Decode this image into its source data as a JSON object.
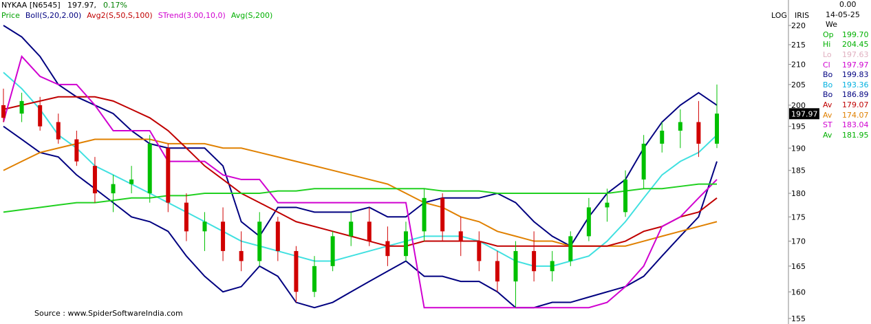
{
  "header": {
    "symbol": "NYKAA [N6545]",
    "price": "197.97,",
    "change": "0.17%"
  },
  "legend": [
    {
      "label": "Price",
      "color": "#00a000"
    },
    {
      "label": "Boll(S,20,2.00)",
      "color": "#000080"
    },
    {
      "label": "Avg2(S,50,S,100)",
      "color": "#c00000"
    },
    {
      "label": "STrend(3.00,10,0)",
      "color": "#d000d0"
    },
    {
      "label": "Avg(S,200)",
      "color": "#00b000"
    }
  ],
  "scale_labels": [
    "LOG",
    "IRIS"
  ],
  "source": "Source : www.SpiderSoftwareIndia.com",
  "info_panel": {
    "change": "0.00",
    "date": "14-05-25 We",
    "rows": [
      {
        "label": "Op",
        "value": "199.70",
        "color": "#00b000"
      },
      {
        "label": "Hi",
        "value": "204.45",
        "color": "#00b000"
      },
      {
        "label": "Lo",
        "value": "197.63",
        "color": "#e0b0c0"
      },
      {
        "label": "Cl",
        "value": "197.97",
        "color": "#d000d0"
      },
      {
        "label": "Bo",
        "value": "199.83",
        "color": "#000080"
      },
      {
        "label": "Bo",
        "value": "193.36",
        "color": "#00b0e0"
      },
      {
        "label": "Bo",
        "value": "186.89",
        "color": "#000080"
      },
      {
        "label": "Av",
        "value": "179.07",
        "color": "#c00000"
      },
      {
        "label": "Av",
        "value": "174.07",
        "color": "#e08000"
      },
      {
        "label": "ST",
        "value": "183.04",
        "color": "#d000d0"
      },
      {
        "label": "Av",
        "value": "181.95",
        "color": "#00b000"
      }
    ]
  },
  "chart_data": {
    "type": "candlestick",
    "log_scale": true,
    "ylim": [
      154.6,
      226.8
    ],
    "yticks": [
      155,
      160,
      165,
      170,
      175,
      180,
      185,
      190,
      195,
      200,
      205,
      210,
      215,
      220
    ],
    "last_price": 197.97,
    "up_color": "#00c000",
    "down_color": "#d00000",
    "open": [
      200,
      198,
      200,
      196,
      192,
      186,
      180,
      182,
      180,
      190,
      178,
      172,
      174,
      168,
      166,
      174,
      168,
      160,
      165,
      171,
      174,
      170,
      167,
      172,
      179,
      172,
      170,
      166,
      162,
      168,
      164,
      166,
      171,
      177,
      176,
      183,
      191,
      194,
      196,
      191
    ],
    "high": [
      204,
      203,
      202,
      198,
      194,
      188,
      184,
      186,
      193,
      191,
      180,
      176,
      177,
      172,
      176,
      175,
      169,
      167,
      172,
      176,
      177,
      173,
      174,
      181,
      180,
      175,
      172,
      168,
      170,
      172,
      168,
      172,
      179,
      181,
      185,
      193,
      196,
      199,
      201,
      205
    ],
    "low": [
      196,
      196,
      194,
      191,
      186,
      178,
      176,
      180,
      178,
      176,
      170,
      168,
      166,
      164,
      165,
      166,
      158,
      159,
      164,
      169,
      169,
      165,
      166,
      170,
      170,
      167,
      164,
      160,
      157,
      162,
      162,
      165,
      170,
      174,
      175,
      181,
      189,
      190,
      188,
      190
    ],
    "close": [
      197,
      201,
      195,
      192,
      187,
      180,
      182,
      183,
      191,
      178,
      172,
      174,
      168,
      166,
      174,
      168,
      160,
      165,
      171,
      174,
      170,
      167,
      172,
      179,
      172,
      170,
      166,
      162,
      168,
      164,
      166,
      171,
      177,
      178,
      183,
      191,
      194,
      196,
      191,
      198
    ],
    "lines": [
      {
        "color": "#000080",
        "values": [
          220,
          217,
          212,
          205,
          202,
          200,
          198,
          194,
          191,
          190,
          190,
          190,
          186,
          174,
          171,
          177,
          177,
          176,
          176,
          176,
          177,
          175,
          175,
          178,
          179,
          179,
          179,
          180,
          178,
          174,
          171,
          169,
          175,
          180,
          183,
          190,
          196,
          200,
          203,
          200
        ]
      },
      {
        "color": "#000080",
        "values": [
          195,
          192,
          189,
          188,
          184,
          181,
          178,
          175,
          174,
          172,
          167,
          163,
          160,
          161,
          165,
          163,
          158,
          157,
          158,
          160,
          162,
          164,
          166,
          163,
          163,
          162,
          162,
          160,
          157,
          157,
          158,
          158,
          159,
          160,
          161,
          163,
          167,
          171,
          175,
          187
        ]
      },
      {
        "color": "#40e0e0",
        "values": [
          208,
          204,
          199,
          193,
          190,
          186,
          184,
          182,
          180,
          178,
          176,
          174,
          172,
          170,
          169,
          168,
          167,
          166,
          166,
          167,
          168,
          169,
          170,
          171,
          171,
          171,
          170,
          168,
          166,
          165,
          165,
          166,
          167,
          170,
          174,
          179,
          184,
          187,
          189,
          193
        ]
      },
      {
        "color": "#e08000",
        "values": [
          185,
          187,
          189,
          190,
          191,
          192,
          192,
          192,
          192,
          191,
          191,
          191,
          190,
          190,
          189,
          188,
          187,
          186,
          185,
          184,
          183,
          182,
          180,
          178,
          177,
          175,
          174,
          172,
          171,
          170,
          170,
          169,
          169,
          169,
          169,
          170,
          171,
          172,
          173,
          174
        ]
      },
      {
        "color": "#c00000",
        "values": [
          199,
          200,
          201,
          202,
          202,
          202,
          201,
          199,
          197,
          194,
          190,
          186,
          183,
          180,
          178,
          176,
          174,
          173,
          172,
          171,
          170,
          169,
          169,
          170,
          170,
          170,
          170,
          169,
          169,
          169,
          169,
          169,
          169,
          169,
          170,
          172,
          173,
          175,
          176,
          179
        ]
      },
      {
        "color": "#d000d0",
        "values": [
          196,
          212,
          207,
          205,
          205,
          200,
          194,
          194,
          194,
          187,
          187,
          187,
          184,
          183,
          183,
          178,
          178,
          178,
          178,
          178,
          178,
          178,
          178,
          157,
          157,
          157,
          157,
          157,
          157,
          157,
          157,
          157,
          157,
          158,
          161,
          165,
          173,
          175,
          179,
          183
        ]
      },
      {
        "color": "#20d020",
        "values": [
          176,
          176.5,
          177,
          177.5,
          178,
          178,
          178.5,
          179,
          179,
          179.5,
          179.5,
          180,
          180,
          180,
          180,
          180.5,
          180.5,
          181,
          181,
          181,
          181,
          181,
          181,
          181,
          180.5,
          180.5,
          180.5,
          180,
          180,
          180,
          180,
          180,
          180,
          180,
          180.5,
          181,
          181,
          181.5,
          182,
          182
        ]
      }
    ]
  }
}
